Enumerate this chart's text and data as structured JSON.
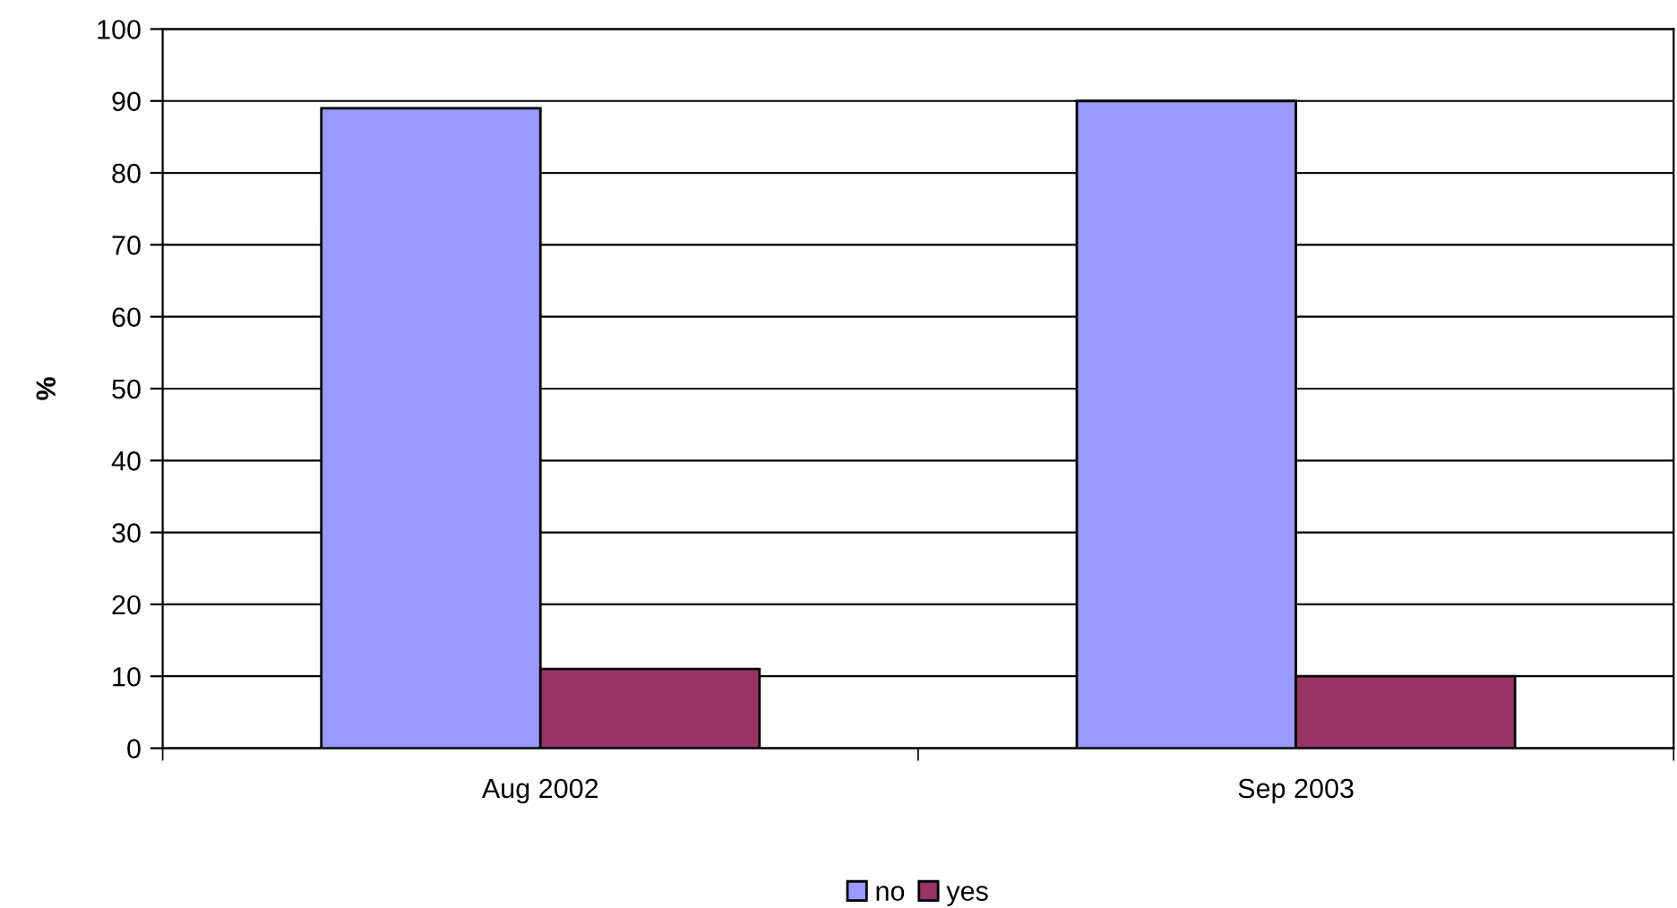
{
  "chart_data": {
    "type": "bar",
    "ylabel": "%",
    "categories": [
      "Aug 2002",
      "Sep 2003"
    ],
    "series": [
      {
        "name": "no",
        "color": "#9999ff",
        "values": [
          89,
          90
        ]
      },
      {
        "name": "yes",
        "color": "#993366",
        "values": [
          11,
          10
        ]
      }
    ],
    "ylim": [
      0,
      100
    ],
    "yticks": [
      0,
      10,
      20,
      30,
      40,
      50,
      60,
      70,
      80,
      90,
      100
    ],
    "grid": "y",
    "legend": "bottom"
  }
}
